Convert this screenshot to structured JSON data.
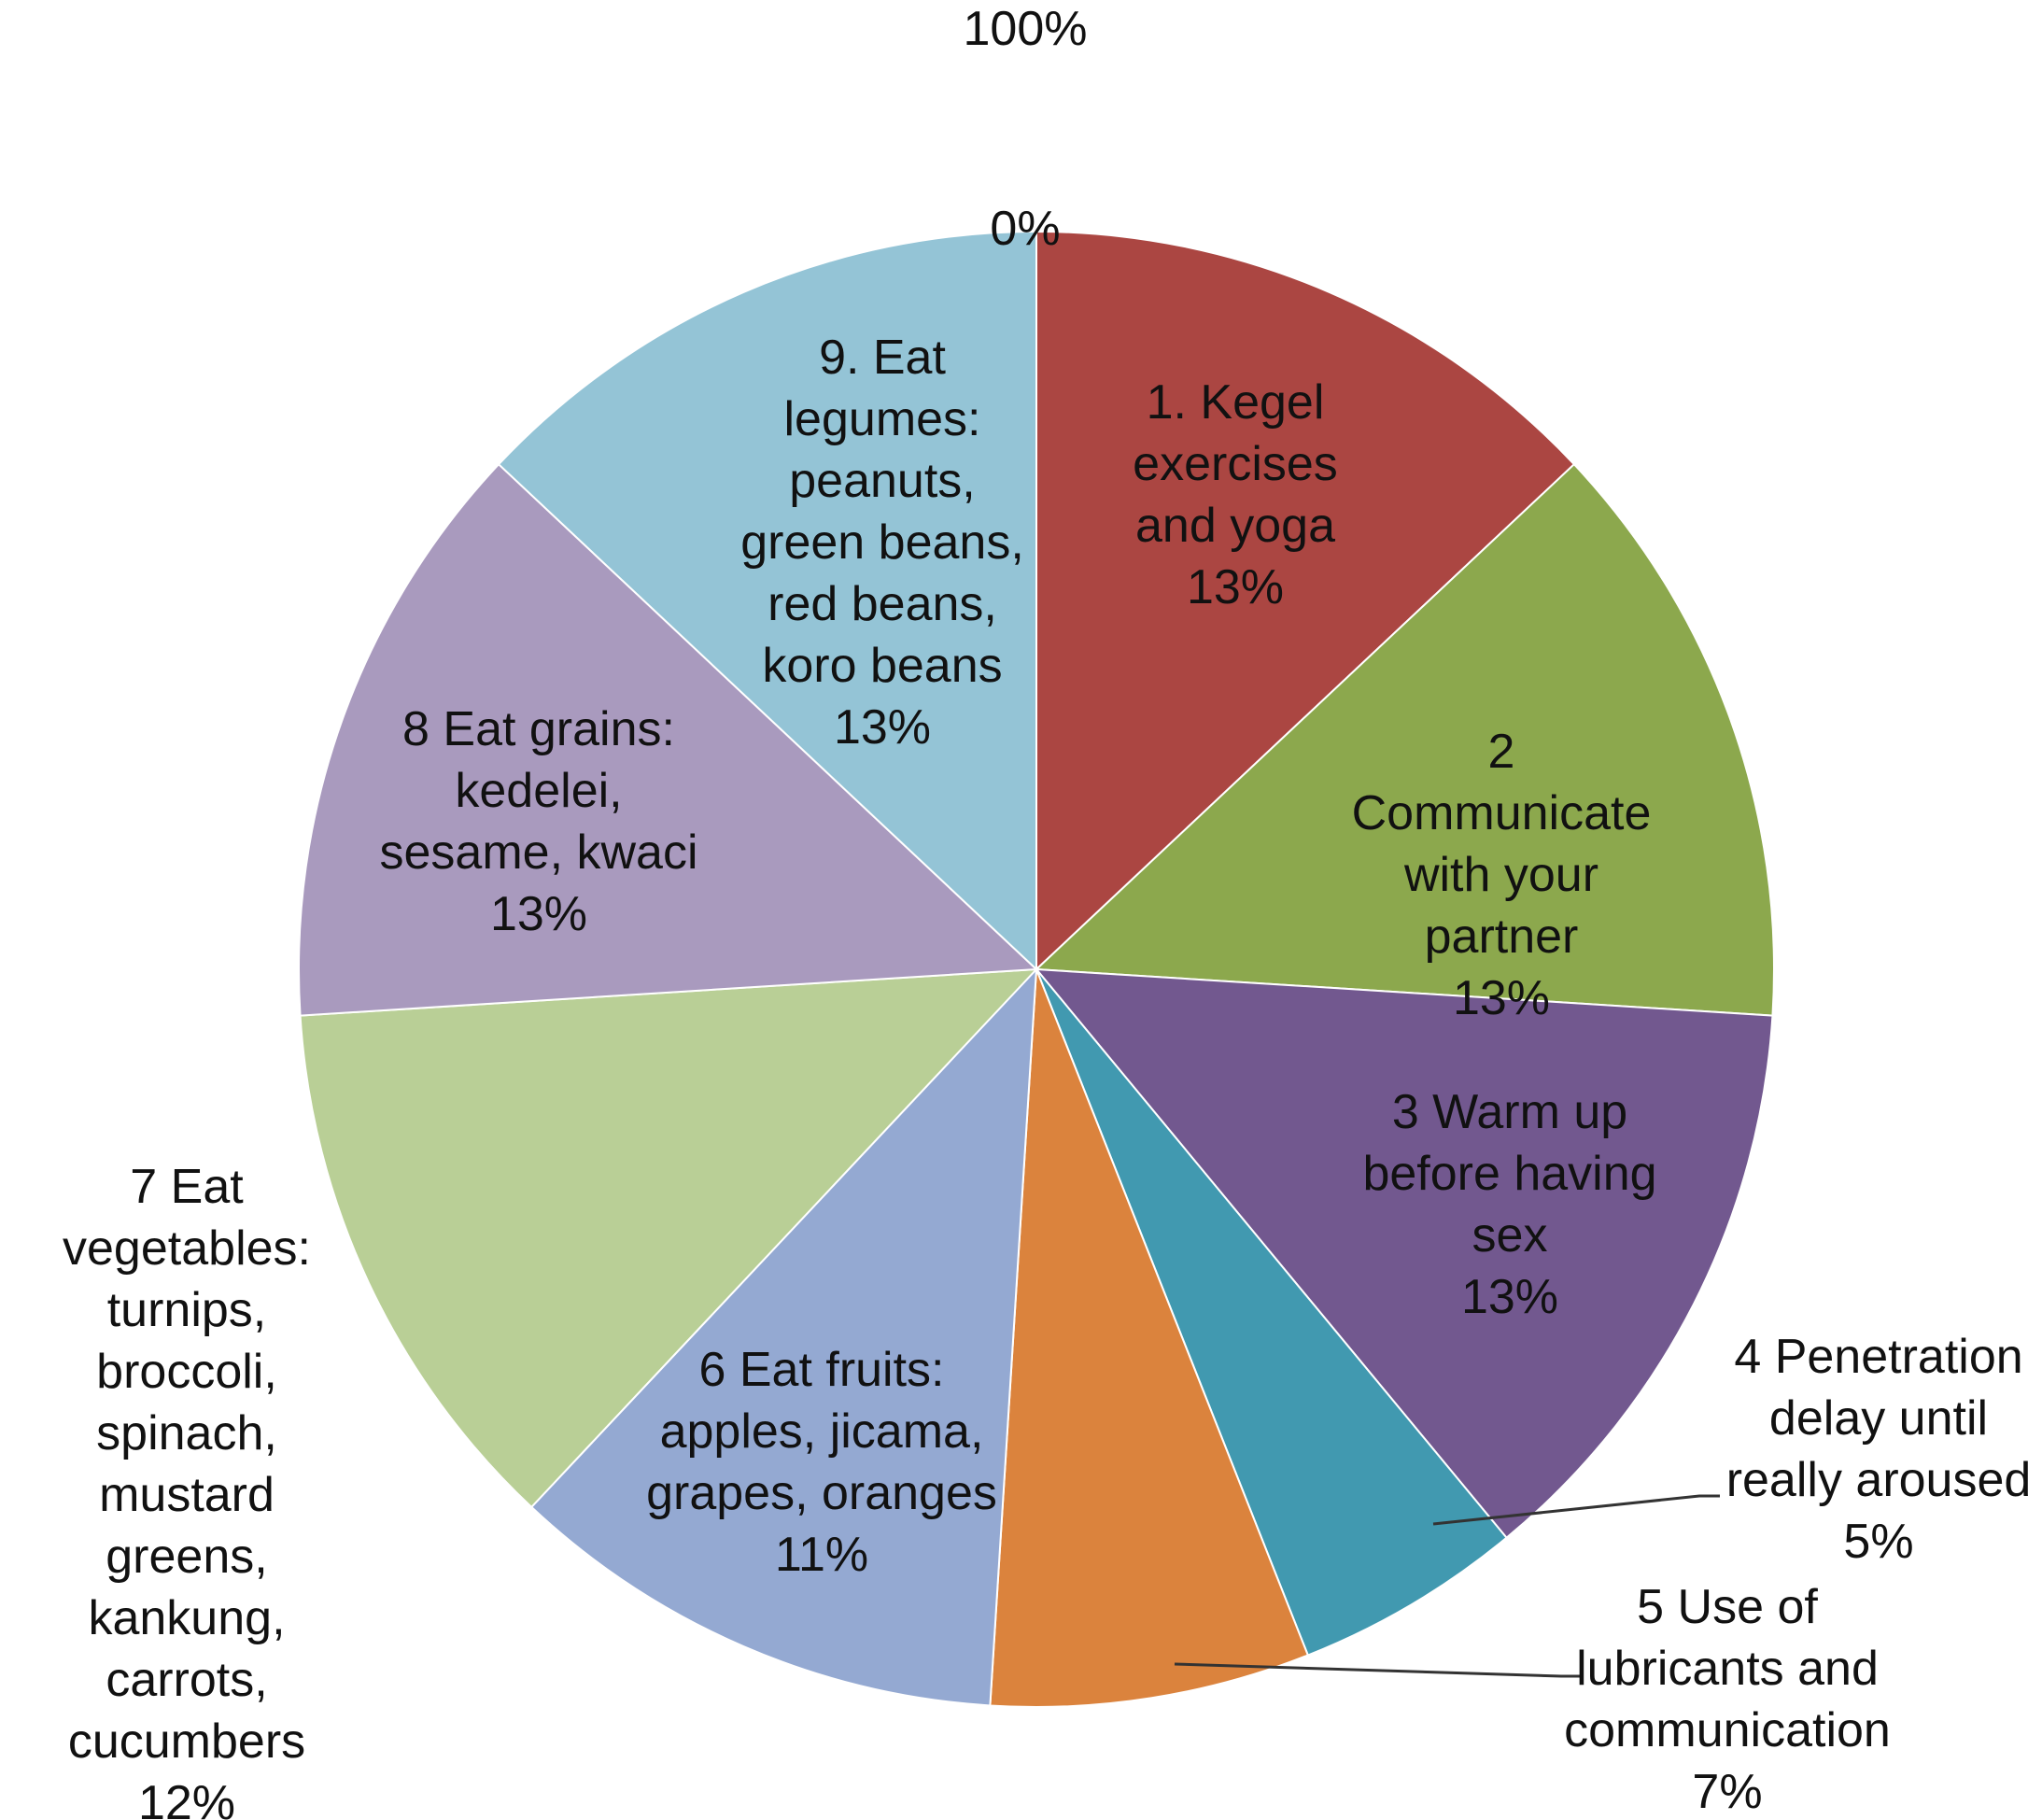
{
  "chart_data": {
    "type": "pie",
    "title": "",
    "top_labels": [
      "100%",
      "0%"
    ],
    "start": "12 o'clock",
    "direction": "clockwise",
    "slices": [
      {
        "label": "1. Kegel exercises and yoga",
        "value": 13,
        "display": "13%",
        "color": "#AB4642"
      },
      {
        "label": "2 Communicate with your partner",
        "value": 13,
        "display": "13%",
        "color": "#8CA84D"
      },
      {
        "label": "3 Warm up before having sex",
        "value": 13,
        "display": "13%",
        "color": "#72588F"
      },
      {
        "label": "4 Penetration delay until really aroused",
        "value": 5,
        "display": "5%",
        "color": "#4199B0"
      },
      {
        "label": "5 Use of lubricants and communication",
        "value": 7,
        "display": "7%",
        "color": "#DB833D"
      },
      {
        "label": "6 Eat fruits: apples, jicama, grapes, oranges",
        "value": 11,
        "display": "11%",
        "color": "#94A9D2"
      },
      {
        "label": "7 Eat vegetables: turnips, broccoli, spinach, mustard greens, kankung, carrots, cucumbers",
        "value": 12,
        "display": "12%",
        "color": "#B9CF96"
      },
      {
        "label": "8 Eat grains: kedelei, sesame, kwaci",
        "value": 13,
        "display": "13%",
        "color": "#A99ABE"
      },
      {
        "label": "9. Eat legumes: peanuts, green beans, red beans, koro beans",
        "value": 13,
        "display": "13%",
        "color": "#94C4D6"
      }
    ]
  }
}
